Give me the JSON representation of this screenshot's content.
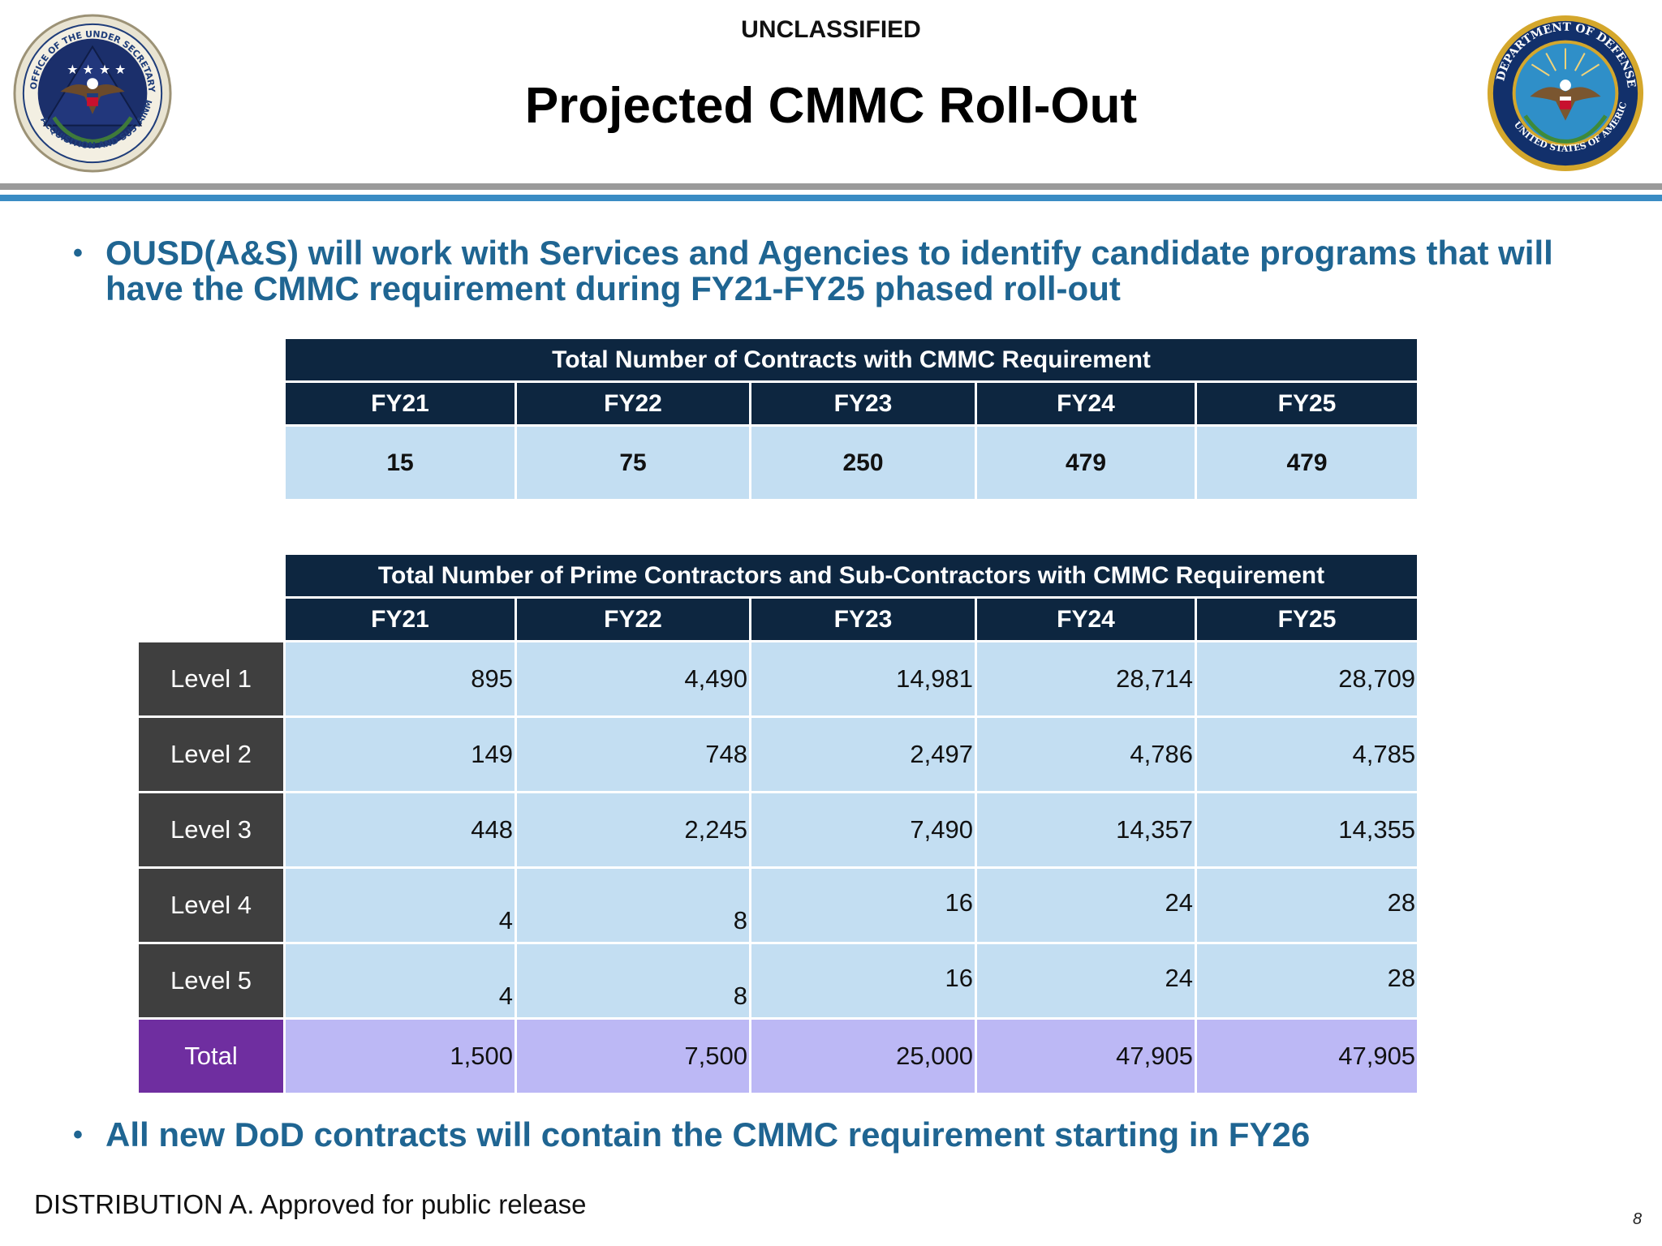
{
  "header": {
    "classification": "UNCLASSIFIED",
    "title": "Projected CMMC Roll-Out",
    "left_seal": {
      "icon": "ousd-as-seal-icon",
      "ring_text": "OFFICE OF THE UNDER SECRETARY OF DEFENSE · ACQUISITION AND SUSTAINMENT",
      "colors": {
        "ring": "#1f3d7a",
        "inner": "#1b2f6b",
        "gold": "#c9a227"
      }
    },
    "right_seal": {
      "icon": "department-of-defense-seal-icon",
      "ring_text": "DEPARTMENT OF DEFENSE · UNITED STATES OF AMERICA",
      "colors": {
        "ring": "#12306b",
        "inner": "#2f8fc8",
        "gold": "#d4a72c"
      }
    }
  },
  "bullets": [
    "OUSD(A&S) will work with Services and Agencies to identify candidate programs that will have the CMMC requirement during FY21-FY25 phased roll-out",
    "All new DoD contracts will contain the CMMC requirement starting in FY26"
  ],
  "contracts_table": {
    "title": "Total Number of Contracts with CMMC Requirement",
    "columns": [
      "FY21",
      "FY22",
      "FY23",
      "FY24",
      "FY25"
    ],
    "values": [
      "15",
      "75",
      "250",
      "479",
      "479"
    ]
  },
  "contractors_table": {
    "title": "Total Number of Prime Contractors and Sub-Contractors with CMMC Requirement",
    "columns": [
      "FY21",
      "FY22",
      "FY23",
      "FY24",
      "FY25"
    ],
    "rows": [
      {
        "label": "Level 1",
        "values": [
          "895",
          "4,490",
          "14,981",
          "28,714",
          "28,709"
        ]
      },
      {
        "label": "Level 2",
        "values": [
          "149",
          "748",
          "2,497",
          "4,786",
          "4,785"
        ]
      },
      {
        "label": "Level 3",
        "values": [
          "448",
          "2,245",
          "7,490",
          "14,357",
          "14,355"
        ]
      },
      {
        "label": "Level 4",
        "values": [
          "4",
          "8",
          "16",
          "24",
          "28"
        ]
      },
      {
        "label": "Level 5",
        "values": [
          "4",
          "8",
          "16",
          "24",
          "28"
        ]
      }
    ],
    "total": {
      "label": "Total",
      "values": [
        "1,500",
        "7,500",
        "25,000",
        "47,905",
        "47,905"
      ]
    }
  },
  "footer": {
    "distribution": "DISTRIBUTION A.  Approved for public release",
    "page_number": "8"
  },
  "colors": {
    "bullet_text": "#1f6592",
    "header_rule_gray": "#9a9a9a",
    "header_rule_blue": "#3a8cc4",
    "table_header": "#0d2640",
    "table_cell": "#c3def2",
    "level_label": "#3f3f3f",
    "total_label": "#6f2ea0",
    "total_cells": "#bcb8f5"
  }
}
